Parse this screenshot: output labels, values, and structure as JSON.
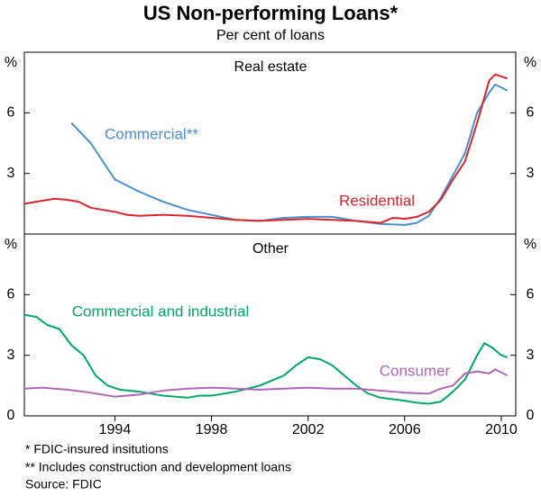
{
  "title": "US Non-performing Loans*",
  "subtitle": "Per cent of loans",
  "notes": [
    "*  FDIC-insured insitutions",
    "** Includes construction and development loans"
  ],
  "source": "Source: FDIC",
  "chart_data": [
    {
      "type": "line",
      "title": "Real estate",
      "y_label": "%",
      "xlim": [
        1990.25,
        2010.6
      ],
      "ylim": [
        0,
        9
      ],
      "yticks": [
        3,
        6
      ],
      "series": [
        {
          "name": "Commercial**",
          "color": "#4a8fd0",
          "x": [
            1992.2,
            1993,
            1994,
            1995,
            1996,
            1997,
            1998,
            1999,
            2000,
            2001,
            2002,
            2003,
            2004,
            2005,
            2006,
            2006.5,
            2007,
            2007.5,
            2008,
            2008.5,
            2009,
            2009.5,
            2009.75,
            2010.25
          ],
          "values": [
            5.5,
            4.5,
            2.7,
            2.1,
            1.6,
            1.2,
            0.95,
            0.7,
            0.65,
            0.8,
            0.85,
            0.85,
            0.65,
            0.5,
            0.45,
            0.55,
            0.9,
            1.8,
            2.9,
            4.0,
            6.0,
            7.0,
            7.4,
            7.1
          ]
        },
        {
          "name": "Residential",
          "color": "#d9272e",
          "x": [
            1990.25,
            1991,
            1991.5,
            1992,
            1992.5,
            1993,
            1994,
            1994.5,
            1995,
            1996,
            1997,
            1998,
            1999,
            2000,
            2001,
            2002,
            2003,
            2004,
            2005,
            2005.5,
            2006,
            2006.5,
            2007,
            2007.5,
            2008,
            2008.5,
            2009,
            2009.5,
            2009.75,
            2010.25
          ],
          "values": [
            1.5,
            1.65,
            1.75,
            1.7,
            1.6,
            1.3,
            1.1,
            0.95,
            0.9,
            0.95,
            0.9,
            0.8,
            0.7,
            0.65,
            0.7,
            0.75,
            0.7,
            0.65,
            0.55,
            0.8,
            0.75,
            0.85,
            1.1,
            1.7,
            2.7,
            3.6,
            5.5,
            7.6,
            7.9,
            7.7
          ]
        }
      ]
    },
    {
      "type": "line",
      "title": "Other",
      "y_label": "%",
      "xlim": [
        1990.25,
        2010.6
      ],
      "ylim": [
        0,
        9
      ],
      "yticks": [
        0,
        3,
        6
      ],
      "xticks": [
        1994,
        1998,
        2002,
        2006,
        2010
      ],
      "series": [
        {
          "name": "Commercial and industrial",
          "color": "#00a667",
          "x": [
            1990.25,
            1990.75,
            1991.2,
            1991.7,
            1992.2,
            1992.7,
            1993.2,
            1993.7,
            1994.2,
            1995,
            1996,
            1997,
            1997.5,
            1998,
            1999,
            2000,
            2001,
            2001.5,
            2002,
            2002.5,
            2003,
            2003.5,
            2004,
            2004.5,
            2005,
            2006,
            2006.5,
            2007,
            2007.5,
            2008,
            2008.5,
            2009,
            2009.3,
            2009.6,
            2010,
            2010.25
          ],
          "values": [
            5.0,
            4.9,
            4.5,
            4.3,
            3.5,
            3.0,
            2.0,
            1.5,
            1.3,
            1.2,
            1.0,
            0.9,
            1.0,
            1.0,
            1.2,
            1.5,
            2.0,
            2.5,
            2.9,
            2.8,
            2.5,
            2.0,
            1.5,
            1.1,
            0.9,
            0.75,
            0.65,
            0.6,
            0.7,
            1.2,
            1.8,
            3.0,
            3.6,
            3.4,
            3.0,
            2.9
          ]
        },
        {
          "name": "Consumer",
          "color": "#b066b8",
          "x": [
            1990.25,
            1991,
            1992,
            1993,
            1994,
            1995,
            1996,
            1997,
            1998,
            1999,
            2000,
            2001,
            2002,
            2003,
            2004,
            2005,
            2006,
            2007,
            2007.5,
            2008,
            2008.5,
            2009,
            2009.5,
            2009.75,
            2010.25
          ],
          "values": [
            1.35,
            1.4,
            1.3,
            1.15,
            0.95,
            1.05,
            1.25,
            1.35,
            1.4,
            1.35,
            1.3,
            1.35,
            1.4,
            1.35,
            1.35,
            1.25,
            1.15,
            1.1,
            1.35,
            1.5,
            2.1,
            2.2,
            2.1,
            2.3,
            2.0
          ]
        }
      ]
    }
  ]
}
